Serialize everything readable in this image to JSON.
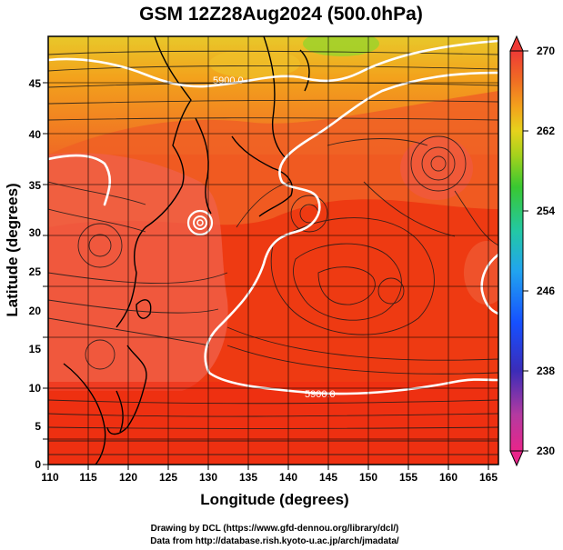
{
  "title": "GSM 12Z28Aug2024 (500.0hPa)",
  "xlabel": "Longitude (degrees)",
  "ylabel": "Latitude  (degrees)",
  "x_ticks": [
    "110",
    "115",
    "120",
    "125",
    "130",
    "135",
    "140",
    "145",
    "150",
    "155",
    "160",
    "165"
  ],
  "y_ticks": [
    "0",
    "5",
    "10",
    "15",
    "20",
    "25",
    "30",
    "35",
    "40",
    "45"
  ],
  "colorbar_ticks": [
    "270",
    "262",
    "254",
    "246",
    "238",
    "230"
  ],
  "contour_labels": [
    "5900.0",
    "5900.0"
  ],
  "credits": {
    "line1": "Drawing by DCL (https://www.gfd-dennou.org/library/dcl/)",
    "line2": "Data from http://database.rish.kyoto-u.ac.jp/arch/jmadata/"
  },
  "colors": {
    "warm_fill": "#ee3a12",
    "warm_fill_south": "#ee2a10",
    "western_warm": "#f06048",
    "northern_orange": "#f39a1c",
    "northern_yellow": "#e8c82a",
    "northern_green": "#9ed22a",
    "contour_line": "#ffffff",
    "colorbar_stops": [
      "#e8258a",
      "#b43aa0",
      "#3b2cb8",
      "#1650ff",
      "#21a4ef",
      "#23c8a4",
      "#39c831",
      "#a6d21c",
      "#e6d21c",
      "#f3a21c",
      "#f06a24",
      "#ee3a36"
    ]
  }
}
